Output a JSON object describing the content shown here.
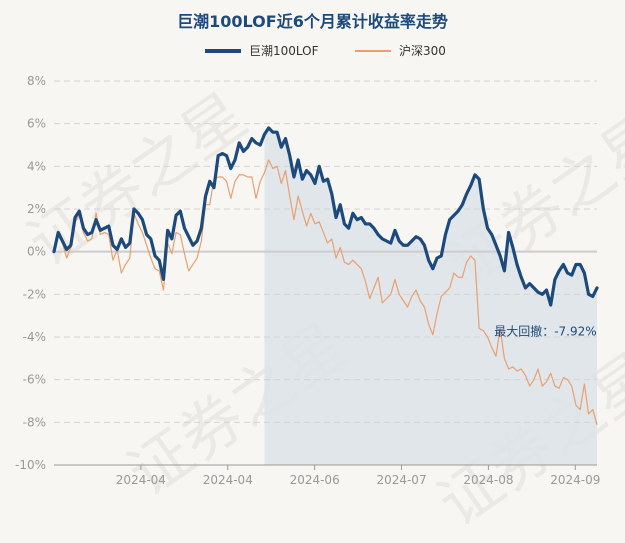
{
  "title": "巨潮100LOF近6个月累计收益率走势",
  "watermark": "证券之星",
  "colors": {
    "fund": "#1d4a7c",
    "index": "#e8a070",
    "shade": "#dde3ea",
    "grid": "#d4d4d4",
    "zero": "#cccccc",
    "axis_text": "#999999"
  },
  "chart_data": {
    "type": "line",
    "title": "巨潮100LOF近6个月累计收益率走势",
    "xlabel": "",
    "ylabel": "",
    "ylim": [
      -10,
      8
    ],
    "yticks": [
      8,
      6,
      4,
      2,
      0,
      -2,
      -4,
      -6,
      -8,
      -10
    ],
    "ytick_labels": [
      "8%",
      "6%",
      "4%",
      "2%",
      "0%",
      "-2%",
      "-4%",
      "-6%",
      "-8%",
      "-10%"
    ],
    "xlim": [
      0,
      125
    ],
    "xticks": [
      20,
      40,
      60,
      80,
      100,
      120
    ],
    "xtick_labels": [
      "2024-04",
      "2024-04",
      "2024-06",
      "2024-07",
      "2024-08",
      "2024-09"
    ],
    "shade_from_index": 50,
    "series": [
      {
        "name": "巨潮100LOF",
        "values": [
          0,
          0.9,
          0.5,
          0.1,
          0.3,
          1.6,
          1.9,
          1.1,
          0.8,
          0.9,
          1.5,
          1.0,
          1.1,
          1.2,
          0.3,
          0.1,
          0.6,
          0.2,
          0.4,
          2.0,
          1.8,
          1.5,
          0.8,
          0.6,
          -0.2,
          -0.4,
          -1.3,
          1.0,
          0.6,
          1.7,
          1.9,
          1.1,
          0.7,
          0.3,
          0.5,
          1.1,
          2.6,
          3.3,
          3.0,
          4.5,
          4.6,
          4.5,
          3.9,
          4.3,
          5.1,
          4.7,
          4.9,
          5.3,
          5.1,
          5.0,
          5.5,
          5.8,
          5.6,
          5.6,
          4.9,
          5.3,
          4.5,
          3.5,
          4.3,
          3.4,
          3.8,
          3.6,
          3.2,
          4.0,
          3.3,
          3.4,
          2.7,
          1.6,
          2.2,
          1.3,
          1.1,
          1.8,
          1.5,
          1.6,
          1.3,
          1.3,
          1.1,
          0.8,
          0.6,
          0.5,
          0.4,
          1.0,
          0.5,
          0.3,
          0.3,
          0.5,
          0.7,
          0.6,
          0.3,
          -0.4,
          -0.8,
          -0.3,
          -0.2,
          0.8,
          1.5,
          1.7,
          1.9,
          2.2,
          2.7,
          3.1,
          3.6,
          3.4,
          2.0,
          1.1,
          0.8,
          0.3,
          -0.2,
          -0.9,
          0.9,
          0.2,
          -0.6,
          -1.2,
          -1.7,
          -1.5,
          -1.7,
          -1.9,
          -2.0,
          -1.8,
          -2.5,
          -1.3,
          -0.9,
          -0.6,
          -1.0,
          -1.1,
          -0.6,
          -0.6,
          -1.0,
          -2.0,
          -2.1,
          -1.7
        ],
        "color": "#1d4a7c"
      },
      {
        "name": "沪深300",
        "values": [
          0,
          0.8,
          0.4,
          -0.3,
          0.2,
          1.4,
          1.7,
          0.9,
          0.5,
          0.6,
          1.8,
          0.8,
          0.9,
          0.8,
          -0.4,
          0.1,
          -1.0,
          -0.6,
          -0.3,
          1.8,
          1.3,
          0.9,
          0.3,
          -0.3,
          -0.8,
          -0.9,
          -1.8,
          0.4,
          -0.1,
          0.9,
          0.8,
          -0.1,
          -0.9,
          -0.6,
          -0.3,
          0.5,
          2.2,
          2.2,
          3.4,
          3.5,
          3.5,
          3.3,
          2.5,
          3.3,
          3.6,
          3.6,
          3.5,
          3.5,
          2.5,
          3.3,
          3.7,
          4.3,
          3.9,
          4.0,
          3.2,
          3.8,
          2.6,
          1.5,
          2.6,
          1.9,
          1.2,
          1.8,
          1.3,
          1.4,
          0.9,
          0.4,
          0.6,
          -0.3,
          0.2,
          -0.5,
          -0.6,
          -0.4,
          -0.6,
          -0.8,
          -1.4,
          -2.2,
          -1.7,
          -1.2,
          -2.4,
          -2.2,
          -2.0,
          -1.3,
          -2.0,
          -2.3,
          -2.6,
          -2.1,
          -1.8,
          -2.3,
          -2.6,
          -3.4,
          -3.9,
          -2.9,
          -2.1,
          -1.9,
          -1.7,
          -1.0,
          -1.2,
          -1.2,
          -0.5,
          -0.2,
          -0.4,
          -3.6,
          -3.7,
          -4.0,
          -4.5,
          -4.9,
          -3.6,
          -5.0,
          -5.5,
          -5.4,
          -5.6,
          -5.5,
          -5.8,
          -6.3,
          -6.0,
          -5.5,
          -6.3,
          -6.1,
          -5.7,
          -6.3,
          -6.4,
          -5.9,
          -6.0,
          -6.3,
          -7.2,
          -7.4,
          -6.2,
          -7.6,
          -7.4,
          -8.1
        ],
        "color": "#e8a070"
      }
    ],
    "annotations": [
      {
        "text": "最大回撤：-7.92%",
        "x": 124,
        "y": -2.9
      }
    ]
  },
  "legend": [
    {
      "label": "巨潮100LOF"
    },
    {
      "label": "沪深300"
    }
  ]
}
